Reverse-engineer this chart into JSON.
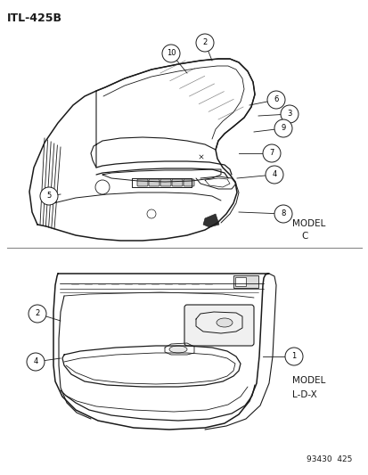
{
  "title": "ITL-425B",
  "bg_color": "#ffffff",
  "line_color": "#1a1a1a",
  "fig_width": 4.14,
  "fig_height": 5.33,
  "dpi": 100,
  "part_num": "93430  425",
  "model_top": "MODEL\n    C",
  "model_bottom": "MODEL\nL-D-X"
}
